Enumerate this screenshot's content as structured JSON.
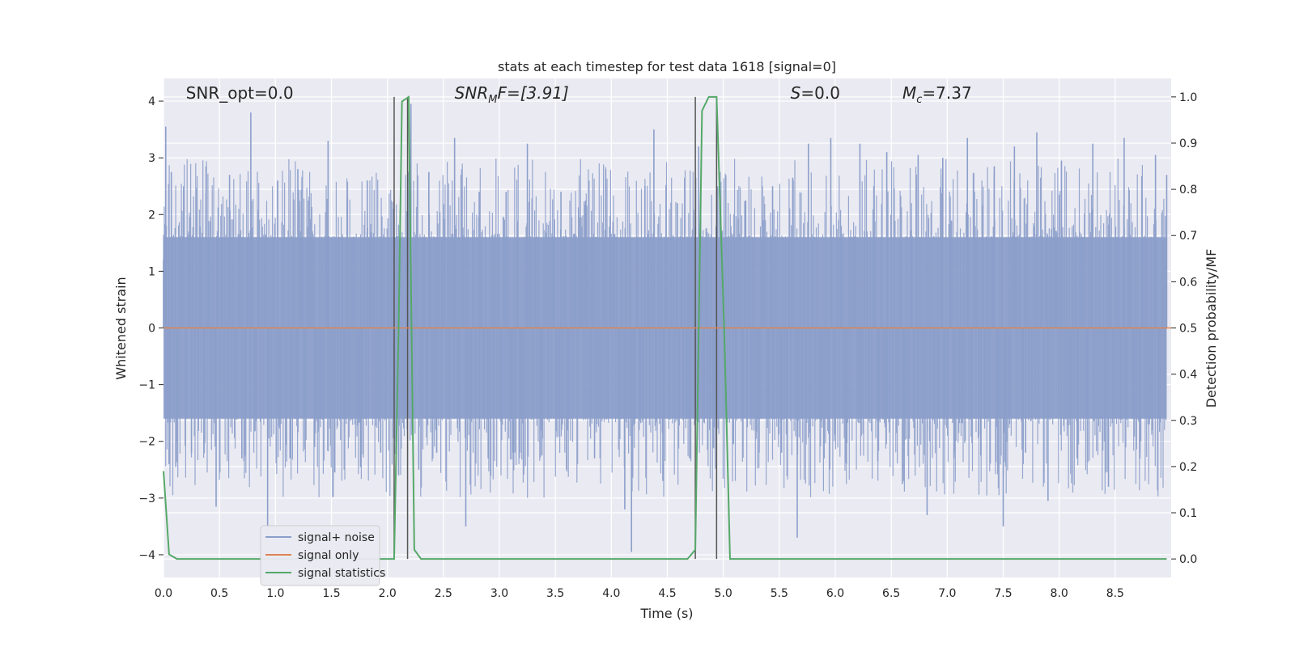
{
  "chart_data": {
    "type": "line",
    "title": "stats at each timestep for test data 1618 [signal=0]",
    "xlabel": "Time (s)",
    "ylabel_left": "Whitened strain",
    "ylabel_right": "Detection probability/MF",
    "xlim": [
      0,
      9.0
    ],
    "ylim_left": [
      -4.4,
      4.4
    ],
    "ylim_right": [
      -0.04,
      1.04
    ],
    "grid": true,
    "x_ticks": [
      0.0,
      0.5,
      1.0,
      1.5,
      2.0,
      2.5,
      3.0,
      3.5,
      4.0,
      4.5,
      5.0,
      5.5,
      6.0,
      6.5,
      7.0,
      7.5,
      8.0,
      8.5
    ],
    "x_tick_labels": [
      "0.0",
      "0.5",
      "1.0",
      "1.5",
      "2.0",
      "2.5",
      "3.0",
      "3.5",
      "4.0",
      "4.5",
      "5.0",
      "5.5",
      "6.0",
      "6.5",
      "7.0",
      "7.5",
      "8.0",
      "8.5"
    ],
    "y_left_ticks": [
      -4,
      -3,
      -2,
      -1,
      0,
      1,
      2,
      3,
      4
    ],
    "y_left_tick_labels": [
      "−4",
      "−3",
      "−2",
      "−1",
      "0",
      "1",
      "2",
      "3",
      "4"
    ],
    "y_right_ticks": [
      0.0,
      0.1,
      0.2,
      0.3,
      0.4,
      0.5,
      0.6,
      0.7,
      0.8,
      0.9,
      1.0
    ],
    "y_right_tick_labels": [
      "0.0",
      "0.1",
      "0.2",
      "0.3",
      "0.4",
      "0.5",
      "0.6",
      "0.7",
      "0.8",
      "0.9",
      "1.0"
    ],
    "noise_envelope": {
      "description_values": "approximate amplitude envelope of whitened strain",
      "typical_abs": 1.6,
      "max": 3.8,
      "min": -3.9
    },
    "series": [
      {
        "name": "signal+ noise",
        "color": "#8c9fca",
        "x": [
          0.0,
          0.02,
          0.05,
          0.07,
          0.11,
          0.18,
          0.25,
          0.38,
          0.47,
          0.59,
          0.7,
          0.78,
          0.93,
          1.02,
          1.13,
          1.2,
          1.35,
          1.47,
          1.53,
          1.64,
          1.76,
          1.82,
          1.94,
          2.05,
          2.1,
          2.21,
          2.28,
          2.37,
          2.44,
          2.6,
          2.7,
          2.82,
          2.9,
          3.06,
          3.13,
          3.25,
          3.38,
          3.55,
          3.6,
          3.77,
          3.85,
          3.95,
          4.12,
          4.18,
          4.3,
          4.38,
          4.46,
          4.59,
          4.7,
          4.78,
          4.86,
          4.95,
          5.09,
          5.2,
          5.32,
          5.44,
          5.52,
          5.62,
          5.66,
          5.76,
          5.9,
          5.96,
          6.1,
          6.22,
          6.38,
          6.46,
          6.6,
          6.74,
          6.82,
          6.96,
          7.06,
          7.18,
          7.3,
          7.42,
          7.5,
          7.6,
          7.7,
          7.8,
          7.9,
          8.02,
          8.16,
          8.3,
          8.44,
          8.58,
          8.72,
          8.86,
          8.96
        ],
        "values": [
          1.2,
          3.55,
          -2.4,
          2.75,
          -2.45,
          2.5,
          -2.2,
          2.85,
          -3.15,
          2.7,
          -2.3,
          3.8,
          -3.65,
          2.6,
          -2.3,
          2.8,
          -2.1,
          3.3,
          -2.55,
          2.3,
          -2.45,
          2.6,
          -2.2,
          2.1,
          -2.6,
          3.95,
          -2.5,
          2.75,
          -2.2,
          3.35,
          -3.5,
          2.4,
          -2.3,
          2.4,
          -2.2,
          3.25,
          -2.25,
          2.4,
          -2.5,
          2.25,
          -2.3,
          2.8,
          -3.2,
          -3.95,
          2.5,
          3.5,
          -2.7,
          2.2,
          -2.3,
          3.2,
          -2.15,
          2.5,
          -2.05,
          2.25,
          -2.2,
          2.5,
          -2.2,
          2.65,
          -3.7,
          3.25,
          -2.3,
          3.35,
          -2.4,
          3.25,
          -2.35,
          3.1,
          -2.75,
          3.05,
          -3.3,
          3.0,
          -2.3,
          3.35,
          -2.25,
          2.85,
          -3.5,
          3.2,
          -2.2,
          3.45,
          -3.05,
          2.95,
          -2.3,
          3.25,
          -2.8,
          3.35,
          -2.2,
          3.05,
          2.7
        ]
      },
      {
        "name": "signal only",
        "color": "#dd8452",
        "x": [
          0.0,
          9.0
        ],
        "values": [
          0.0,
          0.0
        ]
      },
      {
        "name": "signal statistics",
        "axis": "right",
        "color": "#55a868",
        "x": [
          0.0,
          0.05,
          0.12,
          0.2,
          0.5,
          1.0,
          1.5,
          2.0,
          2.06,
          2.1,
          2.13,
          2.19,
          2.24,
          2.3,
          2.5,
          3.0,
          3.5,
          4.0,
          4.5,
          4.68,
          4.75,
          4.81,
          4.87,
          4.94,
          5.01,
          5.06,
          5.2,
          6.0,
          7.0,
          8.0,
          8.96
        ],
        "values": [
          0.19,
          0.01,
          0.0,
          0.0,
          0.0,
          0.0,
          0.0,
          0.0,
          0.0,
          0.5,
          0.99,
          1.0,
          0.02,
          0.0,
          0.0,
          0.0,
          0.0,
          0.0,
          0.0,
          0.0,
          0.02,
          0.97,
          1.0,
          1.0,
          0.48,
          0.0,
          0.0,
          0.0,
          0.0,
          0.0,
          0.0
        ]
      }
    ],
    "vlines": [
      2.06,
      2.18,
      4.75,
      4.94
    ],
    "annotations": [
      {
        "text": "SNR_opt=0.0",
        "x": 0.2,
        "y": 4.13
      },
      {
        "text": "SNR_MF=[3.91]",
        "main": "SNR",
        "sub": "M",
        "rest": "F=[3.91]",
        "x": 2.6,
        "y": 4.13
      },
      {
        "text": "S=0.0",
        "main": "S",
        "rest": "=0.0",
        "x": 5.6,
        "y": 4.13
      },
      {
        "text": "M_c=7.37",
        "main": "M",
        "sub": "c",
        "rest": "=7.37",
        "x": 6.6,
        "y": 4.13
      }
    ],
    "legend": {
      "position": "lower left",
      "entries": [
        {
          "label": "signal+ noise",
          "color": "#8c9fca"
        },
        {
          "label": "signal only",
          "color": "#dd8452"
        },
        {
          "label": "signal statistics",
          "color": "#55a868"
        }
      ]
    }
  }
}
